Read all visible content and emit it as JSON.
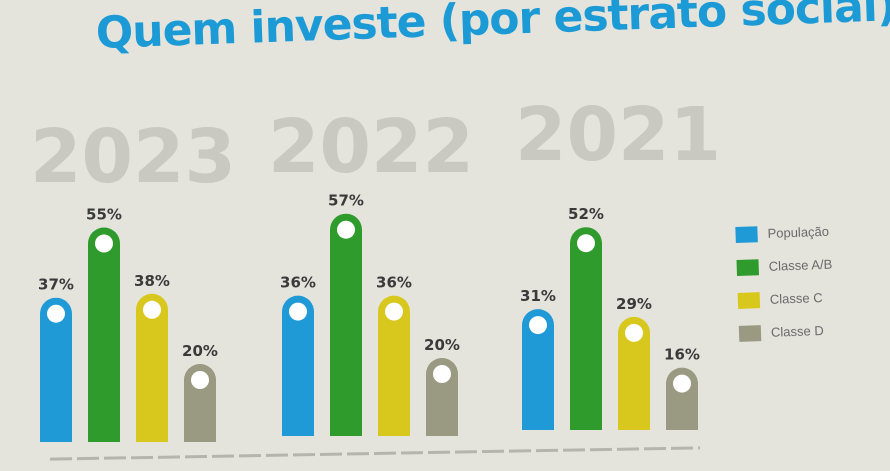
{
  "title": "Quem investe (por estrato social)",
  "colors": {
    "populacao": "#1f9ad7",
    "classe_ab": "#2f9b2d",
    "classe_c": "#d8c81e",
    "classe_d": "#9a9a82"
  },
  "legend": [
    {
      "label": "População",
      "color": "#1f9ad7"
    },
    {
      "label": "Classe A/B",
      "color": "#2f9b2d"
    },
    {
      "label": "Classe C",
      "color": "#d8c81e"
    },
    {
      "label": "Classe D",
      "color": "#9a9a82"
    }
  ],
  "chart_data": {
    "type": "bar",
    "title": "Quem investe (por estrato social)",
    "unit": "%",
    "groups": [
      "2023",
      "2022",
      "2021"
    ],
    "series": [
      {
        "name": "População",
        "values": [
          37,
          36,
          31
        ]
      },
      {
        "name": "Classe A/B",
        "values": [
          55,
          57,
          52
        ]
      },
      {
        "name": "Classe C",
        "values": [
          38,
          36,
          29
        ]
      },
      {
        "name": "Classe D",
        "values": [
          20,
          20,
          16
        ]
      }
    ],
    "value_labels": [
      [
        "37%",
        "55%",
        "38%",
        "20%"
      ],
      [
        "36%",
        "57%",
        "36%",
        "20%"
      ],
      [
        "31%",
        "52%",
        "29%",
        "16%"
      ]
    ],
    "legend_position": "right",
    "grid": false
  }
}
